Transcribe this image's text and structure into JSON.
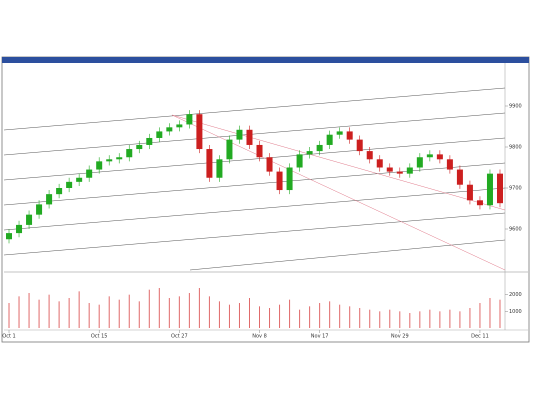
{
  "chart_data": {
    "type": "candlestick",
    "categories": [
      "Oct 1",
      null,
      null,
      null,
      null,
      null,
      null,
      null,
      null,
      "Oct 15",
      null,
      null,
      null,
      null,
      null,
      null,
      null,
      "Oct 27",
      null,
      null,
      null,
      null,
      null,
      null,
      null,
      "Nov 8",
      null,
      null,
      null,
      null,
      null,
      "Nov 17",
      null,
      null,
      null,
      null,
      null,
      null,
      null,
      "Nov 29",
      null,
      null,
      null,
      null,
      null,
      null,
      null,
      "Dec 11",
      null,
      null
    ],
    "open": [
      9575,
      9590,
      9610,
      9635,
      9660,
      9685,
      9700,
      9715,
      9725,
      9745,
      9765,
      9770,
      9775,
      9795,
      9805,
      9822,
      9838,
      9848,
      9855,
      9880,
      9795,
      9725,
      9770,
      9818,
      9842,
      9805,
      9775,
      9740,
      9695,
      9750,
      9782,
      9790,
      9805,
      9830,
      9838,
      9818,
      9790,
      9770,
      9750,
      9740,
      9735,
      9750,
      9775,
      9782,
      9770,
      9745,
      9708,
      9670,
      9658,
      9735
    ],
    "high": [
      9600,
      9620,
      9645,
      9670,
      9695,
      9710,
      9725,
      9735,
      9755,
      9775,
      9780,
      9785,
      9805,
      9815,
      9832,
      9848,
      9858,
      9865,
      9890,
      9890,
      9805,
      9780,
      9828,
      9852,
      9852,
      9815,
      9785,
      9750,
      9760,
      9792,
      9800,
      9815,
      9840,
      9848,
      9848,
      9828,
      9800,
      9780,
      9760,
      9750,
      9760,
      9785,
      9792,
      9792,
      9780,
      9755,
      9718,
      9680,
      9745,
      9745
    ],
    "low": [
      9565,
      9580,
      9600,
      9625,
      9650,
      9675,
      9690,
      9705,
      9715,
      9735,
      9755,
      9760,
      9765,
      9785,
      9795,
      9812,
      9828,
      9838,
      9845,
      9785,
      9715,
      9715,
      9760,
      9808,
      9795,
      9765,
      9730,
      9685,
      9685,
      9740,
      9772,
      9780,
      9795,
      9820,
      9808,
      9780,
      9760,
      9740,
      9730,
      9725,
      9725,
      9740,
      9765,
      9760,
      9735,
      9698,
      9660,
      9648,
      9648,
      9653
    ],
    "close": [
      9590,
      9610,
      9635,
      9660,
      9685,
      9700,
      9715,
      9725,
      9745,
      9765,
      9770,
      9775,
      9795,
      9805,
      9822,
      9838,
      9848,
      9855,
      9880,
      9795,
      9725,
      9770,
      9818,
      9842,
      9805,
      9775,
      9740,
      9695,
      9750,
      9782,
      9790,
      9805,
      9830,
      9838,
      9818,
      9790,
      9770,
      9750,
      9740,
      9735,
      9750,
      9775,
      9782,
      9770,
      9745,
      9708,
      9670,
      9658,
      9735,
      9663
    ],
    "up_color": "#22aa22",
    "down_color": "#cc1f1f",
    "ylim": [
      9500,
      10000
    ],
    "yticks": [
      9600,
      9700,
      9800,
      9900
    ],
    "volume": [
      1500,
      1900,
      2100,
      1700,
      2000,
      1600,
      1800,
      2200,
      1500,
      1400,
      1900,
      1700,
      2000,
      1600,
      2300,
      2400,
      1800,
      1900,
      2100,
      2400,
      1900,
      1600,
      1400,
      1500,
      1800,
      1300,
      1200,
      1400,
      1700,
      1100,
      1300,
      1500,
      1600,
      1400,
      1300,
      1200,
      1100,
      1000,
      1100,
      1000,
      900,
      1000,
      1100,
      1000,
      1100,
      1000,
      1200,
      1500,
      1800,
      1700
    ],
    "volume_color": "#e06a6a",
    "volume_ylim": [
      0,
      3000
    ],
    "volume_yticks": [
      1000,
      2000
    ]
  }
}
